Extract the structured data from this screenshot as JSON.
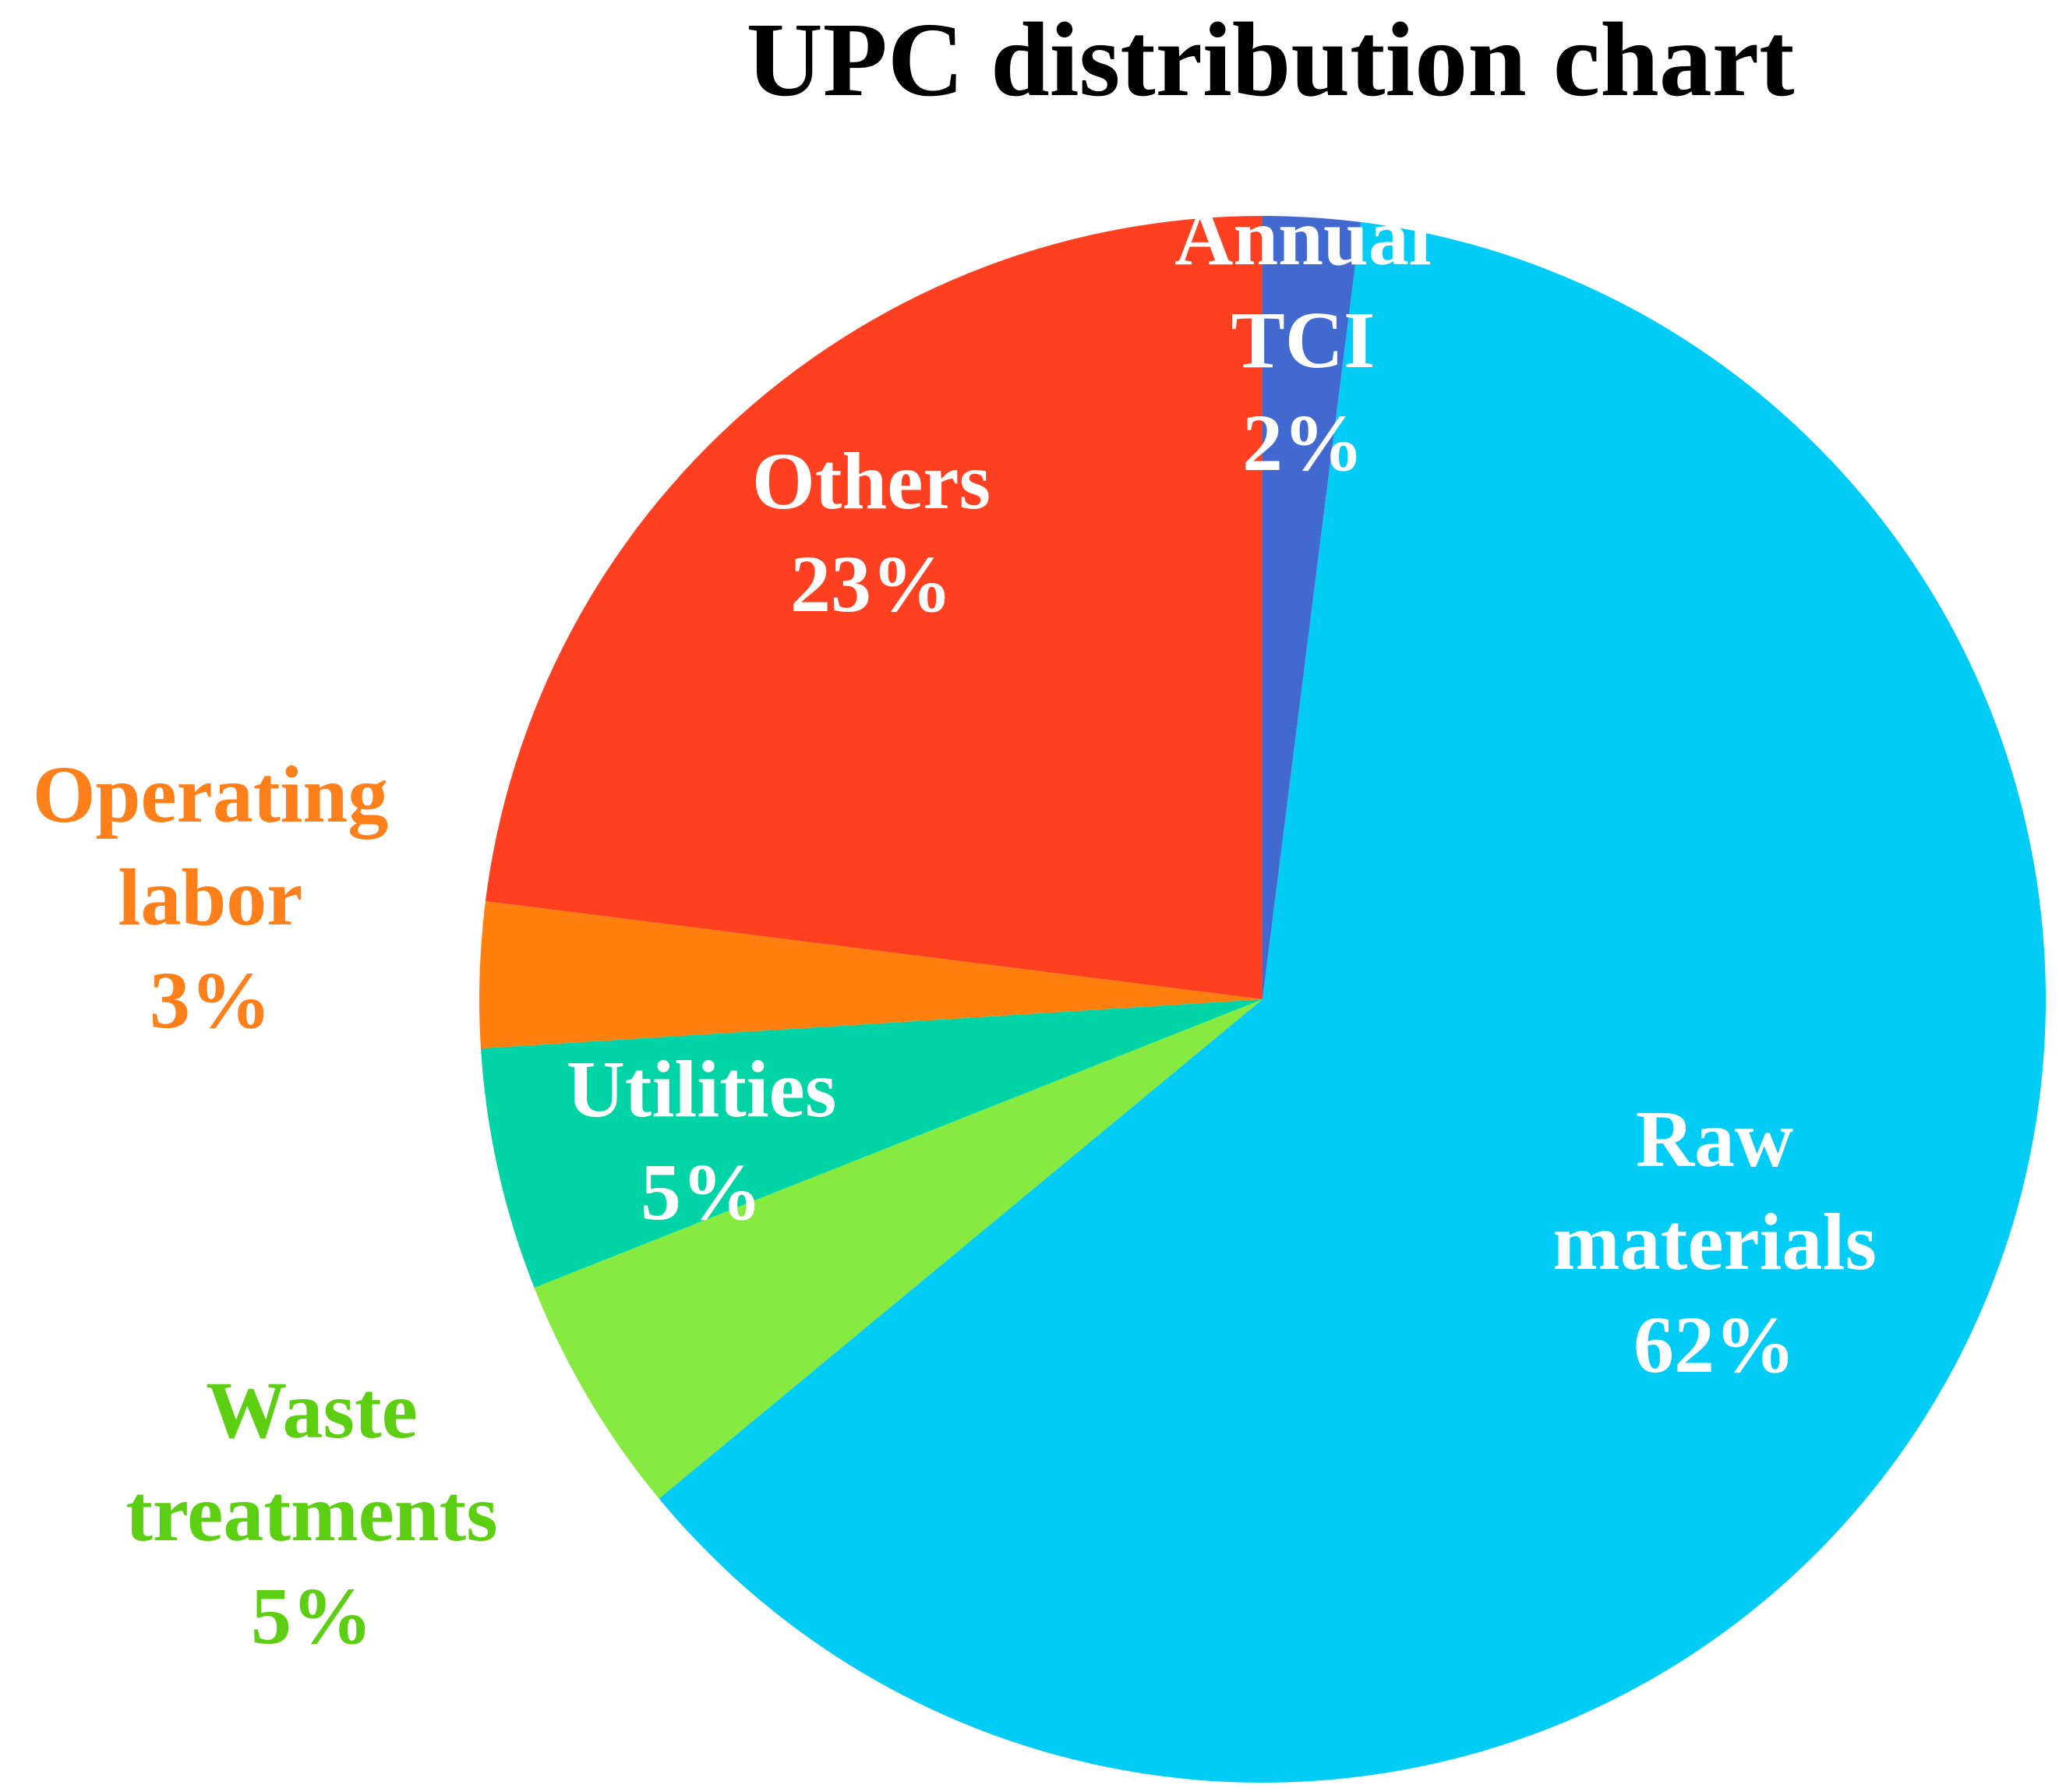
{
  "chart_data": {
    "type": "pie",
    "title": "UPC distribution chart",
    "start_angle_deg": 0,
    "direction": "clockwise",
    "slices": [
      {
        "label_lines": [
          "Annual",
          "TCI"
        ],
        "percent_label": "2%",
        "value": 2,
        "color": "#4169CF",
        "label_color": "#FFFFFF"
      },
      {
        "label_lines": [
          "Raw",
          "materials"
        ],
        "percent_label": "62%",
        "value": 62,
        "color": "#00CCF5",
        "label_color": "#FFFFFF"
      },
      {
        "label_lines": [
          "Waste",
          "treatments"
        ],
        "percent_label": "5%",
        "value": 5,
        "color": "#86EA40",
        "label_color": "#5CCF12"
      },
      {
        "label_lines": [
          "Utilities"
        ],
        "percent_label": "5%",
        "value": 5,
        "color": "#00D4A6",
        "label_color": "#FFFFFF"
      },
      {
        "label_lines": [
          "Operating",
          "labor"
        ],
        "percent_label": "3%",
        "value": 3,
        "color": "#FF7F0E",
        "label_color": "#FF7F1A"
      },
      {
        "label_lines": [
          "Others"
        ],
        "percent_label": "23%",
        "value": 23,
        "color": "#FF4020",
        "label_color": "#FFFFFF"
      }
    ]
  }
}
